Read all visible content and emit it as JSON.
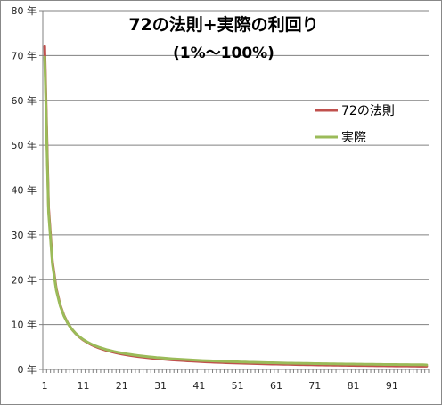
{
  "chart_data": {
    "type": "line",
    "title": "72の法則+実際の利回り",
    "subtitle": "(1%～100%)",
    "xlabel": "",
    "ylabel": "",
    "xlim": [
      1,
      100
    ],
    "ylim": [
      0,
      80
    ],
    "y_ticks": [
      "0 年",
      "10 年",
      "20 年",
      "30 年",
      "40 年",
      "50 年",
      "60 年",
      "70 年",
      "80 年"
    ],
    "x_ticks": [
      "1",
      "11",
      "21",
      "31",
      "41",
      "51",
      "61",
      "71",
      "81",
      "91"
    ],
    "grid": "horizontal",
    "legend_position": "right",
    "x": [
      1,
      2,
      3,
      4,
      5,
      6,
      7,
      8,
      9,
      10,
      11,
      12,
      13,
      14,
      15,
      16,
      17,
      18,
      19,
      20,
      21,
      22,
      23,
      24,
      25,
      26,
      27,
      28,
      29,
      30,
      31,
      32,
      33,
      34,
      35,
      36,
      37,
      38,
      39,
      40,
      41,
      42,
      43,
      44,
      45,
      46,
      47,
      48,
      49,
      50,
      51,
      52,
      53,
      54,
      55,
      56,
      57,
      58,
      59,
      60,
      61,
      62,
      63,
      64,
      65,
      66,
      67,
      68,
      69,
      70,
      71,
      72,
      73,
      74,
      75,
      76,
      77,
      78,
      79,
      80,
      81,
      82,
      83,
      84,
      85,
      86,
      87,
      88,
      89,
      90,
      91,
      92,
      93,
      94,
      95,
      96,
      97,
      98,
      99,
      100
    ],
    "series": [
      {
        "name": "72の法則",
        "color": "#c0504d",
        "values": [
          72,
          36,
          24,
          18,
          14.4,
          12,
          10.29,
          9,
          8,
          7.2,
          6.55,
          6,
          5.54,
          5.14,
          4.8,
          4.5,
          4.24,
          4,
          3.79,
          3.6,
          3.43,
          3.27,
          3.13,
          3,
          2.88,
          2.77,
          2.67,
          2.57,
          2.48,
          2.4,
          2.32,
          2.25,
          2.18,
          2.12,
          2.06,
          2,
          1.95,
          1.89,
          1.85,
          1.8,
          1.76,
          1.71,
          1.67,
          1.64,
          1.6,
          1.57,
          1.53,
          1.5,
          1.47,
          1.44,
          1.41,
          1.38,
          1.36,
          1.33,
          1.31,
          1.29,
          1.26,
          1.24,
          1.22,
          1.2,
          1.18,
          1.16,
          1.14,
          1.13,
          1.11,
          1.09,
          1.07,
          1.06,
          1.04,
          1.03,
          1.01,
          1,
          0.99,
          0.97,
          0.96,
          0.95,
          0.94,
          0.92,
          0.91,
          0.9,
          0.89,
          0.88,
          0.87,
          0.86,
          0.85,
          0.84,
          0.83,
          0.82,
          0.81,
          0.8,
          0.79,
          0.78,
          0.77,
          0.77,
          0.76,
          0.75,
          0.74,
          0.73,
          0.73,
          0.72
        ]
      },
      {
        "name": "実際",
        "color": "#9bbb59",
        "values": [
          69.66,
          35,
          23.45,
          17.67,
          14.21,
          11.9,
          10.24,
          9.01,
          8.04,
          7.27,
          6.64,
          6.12,
          5.67,
          5.29,
          4.96,
          4.67,
          4.41,
          4.19,
          3.98,
          3.8,
          3.64,
          3.49,
          3.35,
          3.22,
          3.11,
          3,
          2.9,
          2.81,
          2.73,
          2.64,
          2.57,
          2.5,
          2.43,
          2.37,
          2.31,
          2.25,
          2.2,
          2.15,
          2.1,
          2.06,
          2.01,
          1.97,
          1.93,
          1.9,
          1.86,
          1.83,
          1.79,
          1.76,
          1.73,
          1.71,
          1.68,
          1.65,
          1.63,
          1.6,
          1.58,
          1.56,
          1.54,
          1.52,
          1.5,
          1.48,
          1.46,
          1.44,
          1.42,
          1.4,
          1.39,
          1.37,
          1.36,
          1.34,
          1.33,
          1.31,
          1.3,
          1.29,
          1.27,
          1.26,
          1.25,
          1.24,
          1.22,
          1.21,
          1.2,
          1.19,
          1.18,
          1.17,
          1.16,
          1.15,
          1.14,
          1.13,
          1.12,
          1.11,
          1.1,
          1.1,
          1.09,
          1.08,
          1.07,
          1.06,
          1.06,
          1.05,
          1.04,
          1.04,
          1.03,
          1
        ]
      }
    ]
  }
}
